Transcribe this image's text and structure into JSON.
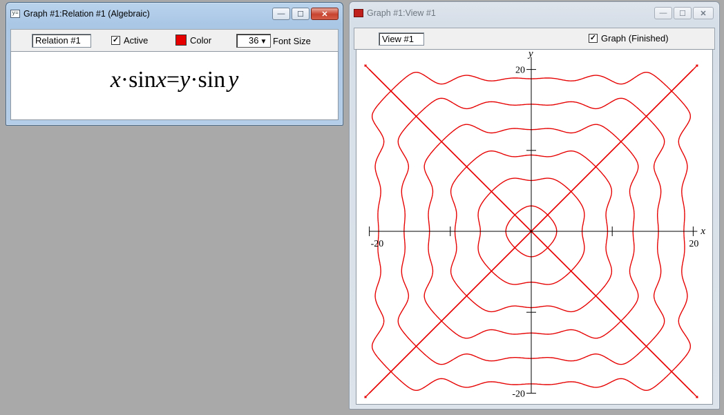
{
  "relation_window": {
    "title": "Graph #1:Relation #1 (Algebraic)",
    "icon": "y=",
    "relation_name": "Relation #1",
    "active_label": "Active",
    "active_checked": true,
    "color_label": "Color",
    "color_value": "#e60000",
    "font_size_value": "36",
    "font_size_label": "Font Size",
    "formula": {
      "x1": "x",
      "dot1": "·",
      "fn1": "sin",
      "x2": "x",
      "eq": "=",
      "y1": "y",
      "dot2": "·",
      "fn2": "sin",
      "y2": "y"
    },
    "controls": {
      "minimize": "—",
      "maximize": "☐",
      "close": "✕"
    }
  },
  "view_window": {
    "title": "Graph #1:View #1",
    "view_name": "View #1",
    "graph_status_label": "Graph (Finished)",
    "graph_status_checked": true,
    "controls": {
      "minimize": "—",
      "maximize": "☐",
      "close": "✕"
    }
  },
  "chart_data": {
    "type": "line",
    "relation": "x*sin(x) = y*sin(y)",
    "xlabel": "x",
    "ylabel": "y",
    "xlim": [
      -20,
      20
    ],
    "ylim": [
      -20,
      20
    ],
    "x_ticks": [
      -20,
      -10,
      10,
      20
    ],
    "y_ticks": [
      -20,
      -10,
      10,
      20
    ],
    "x_tick_labels": [
      "-20",
      "20"
    ],
    "y_tick_labels": [
      "20",
      "-20"
    ],
    "grid": false,
    "curve_color": "#e60000",
    "series": [
      {
        "values": [
          [
            -20,
            -20
          ],
          [
            20,
            20
          ]
        ]
      },
      {
        "values": [
          [
            -20,
            20
          ],
          [
            20,
            -20
          ]
        ]
      }
    ]
  }
}
